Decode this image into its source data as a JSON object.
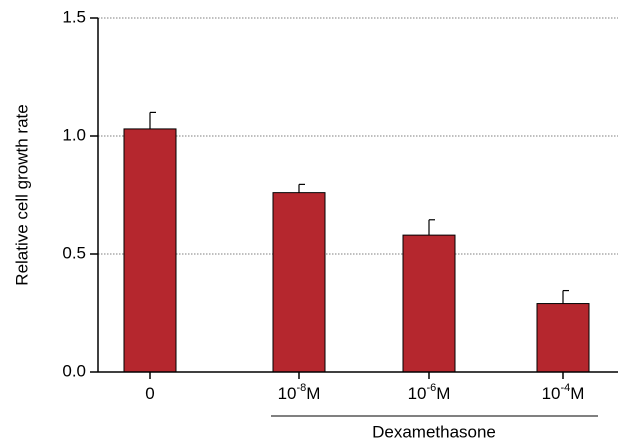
{
  "chart_data": {
    "type": "bar",
    "categories": [
      {
        "base": "0",
        "exp": "",
        "suffix": ""
      },
      {
        "base": "10",
        "exp": "-8",
        "suffix": "M"
      },
      {
        "base": "10",
        "exp": "-6",
        "suffix": "M"
      },
      {
        "base": "10",
        "exp": "-4",
        "suffix": "M"
      }
    ],
    "values": [
      1.03,
      0.76,
      0.58,
      0.29
    ],
    "errors": [
      0.07,
      0.035,
      0.065,
      0.055
    ],
    "ylabel": "Relative cell growth rate",
    "group_label": "Dexamethasone",
    "group_members": [
      "10-8M",
      "10-6M",
      "10-4M"
    ],
    "yticks": [
      "0.0",
      "0.5",
      "1.0",
      "1.5"
    ],
    "ytick_values": [
      0,
      0.5,
      1.0,
      1.5
    ],
    "ylim": [
      0,
      1.5
    ],
    "grid": "horizontal dotted",
    "bar_color": "#b5272e"
  }
}
